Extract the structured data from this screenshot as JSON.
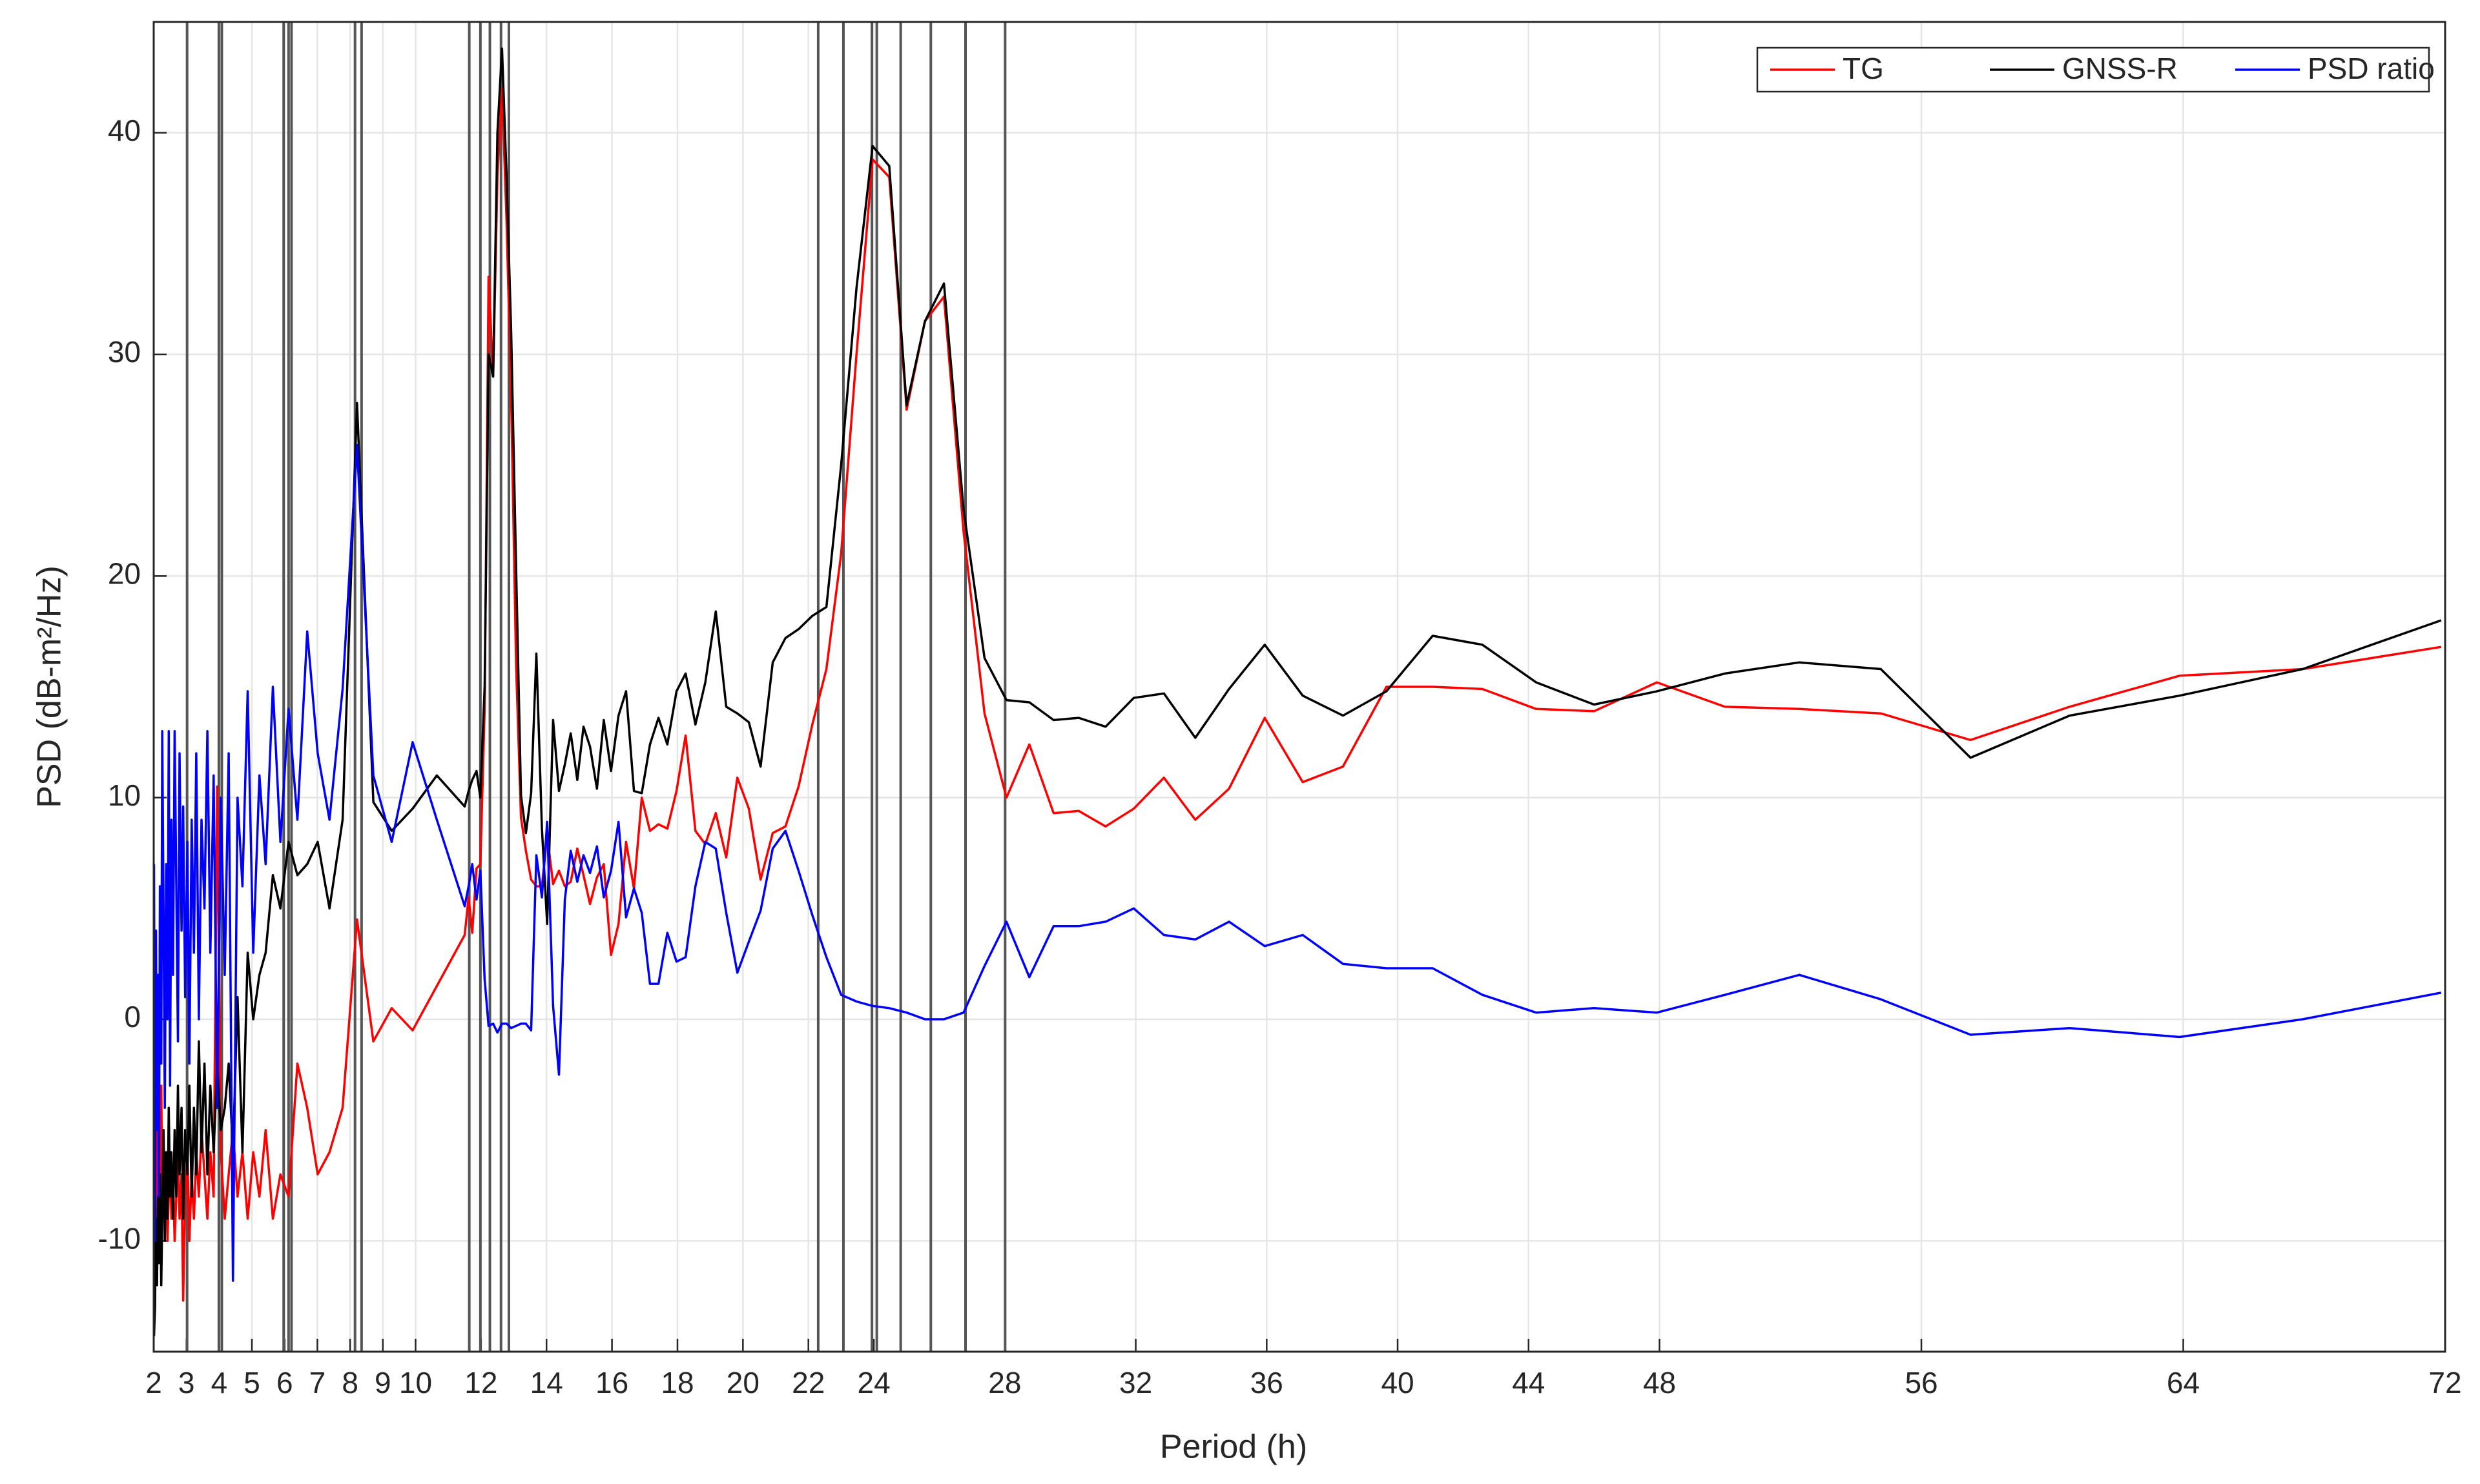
{
  "chart_data": {
    "type": "line",
    "xlabel": "Period (h)",
    "ylabel": "PSD (dB-m²/Hz)",
    "xlim": [
      2,
      72
    ],
    "ylim": [
      -15,
      45
    ],
    "xticks": [
      2,
      3,
      4,
      5,
      6,
      7,
      8,
      9,
      10,
      12,
      14,
      16,
      18,
      20,
      22,
      24,
      28,
      32,
      36,
      40,
      44,
      48,
      56,
      64,
      72
    ],
    "yticks": [
      -10,
      0,
      10,
      20,
      30,
      40
    ],
    "grid": true,
    "legend": "upper right",
    "vlines_color": "#555555",
    "vlines": [
      3.02,
      3.99,
      4.08,
      5.97,
      6.12,
      6.21,
      8.15,
      8.35,
      11.64,
      11.98,
      12.27,
      12.61,
      12.85,
      22.3,
      23.07,
      23.94,
      24.09,
      24.82,
      25.74,
      26.8,
      28.01
    ],
    "x": [
      2.01,
      2.04,
      2.07,
      2.1,
      2.13,
      2.16,
      2.19,
      2.23,
      2.26,
      2.3,
      2.34,
      2.38,
      2.42,
      2.46,
      2.5,
      2.54,
      2.59,
      2.64,
      2.69,
      2.74,
      2.79,
      2.85,
      2.9,
      2.96,
      3.03,
      3.09,
      3.16,
      3.23,
      3.3,
      3.38,
      3.46,
      3.55,
      3.64,
      3.73,
      3.83,
      3.94,
      4.05,
      4.17,
      4.29,
      4.42,
      4.56,
      4.71,
      4.87,
      5.04,
      5.23,
      5.42,
      5.64,
      5.87,
      6.12,
      6.39,
      6.69,
      7.01,
      7.37,
      7.77,
      8.21,
      8.71,
      9.27,
      9.91,
      10.65,
      11.5,
      11.62,
      11.73,
      11.86,
      11.98,
      12.11,
      12.23,
      12.37,
      12.5,
      12.64,
      12.78,
      12.92,
      13.07,
      13.22,
      13.37,
      13.53,
      13.69,
      13.86,
      14.02,
      14.2,
      14.38,
      14.56,
      14.74,
      14.94,
      15.13,
      15.33,
      15.54,
      15.75,
      15.97,
      16.2,
      16.43,
      16.67,
      16.91,
      17.16,
      17.42,
      17.69,
      17.97,
      18.25,
      18.55,
      18.85,
      19.17,
      19.49,
      19.83,
      20.18,
      20.54,
      20.91,
      21.3,
      21.7,
      22.12,
      22.55,
      23.0,
      23.47,
      23.96,
      24.47,
      25.0,
      25.56,
      26.14,
      26.74,
      27.38,
      28.05,
      28.75,
      29.49,
      30.26,
      31.08,
      31.94,
      32.86,
      33.82,
      34.85,
      35.94,
      37.1,
      38.33,
      39.66,
      41.07,
      42.59,
      44.23,
      46.0,
      47.92,
      50.0,
      52.27,
      54.76,
      57.5,
      60.53,
      63.89,
      67.65,
      71.88
    ],
    "series": [
      {
        "name": "TG",
        "color": "#ff0000",
        "values": [
          -12,
          3.5,
          -4,
          -9,
          -6,
          -2,
          -7,
          -3,
          -8,
          -5,
          -9,
          -7,
          -10,
          -8,
          -6,
          -9,
          -7,
          -10,
          -8,
          -6,
          -9,
          -7,
          -12.7,
          -8,
          -6,
          -10,
          -7,
          -9,
          -6,
          -8,
          -5,
          -7,
          -9,
          -6,
          -8,
          10.5,
          -6,
          -9,
          -7,
          -5,
          -8,
          -6,
          -9,
          -6,
          -8,
          -5,
          -9,
          -7,
          -8,
          -2,
          -4,
          -7,
          -6,
          -4,
          4.5,
          -1,
          0.5,
          -0.5,
          1.5,
          3.8,
          5.5,
          3.9,
          6.8,
          7.0,
          14,
          33.5,
          29,
          38,
          42,
          36,
          28,
          16,
          9.1,
          7.6,
          6.3,
          6.0,
          6.0,
          8.3,
          6.1,
          6.7,
          6.0,
          6.2,
          7.7,
          6.5,
          5.2,
          6.4,
          7.0,
          2.9,
          4.3,
          8.0,
          5.9,
          10.0,
          8.5,
          8.8,
          8.6,
          10.3,
          12.8,
          8.5,
          7.9,
          9.3,
          7.3,
          10.9,
          9.5,
          6.3,
          8.4,
          8.7,
          10.5,
          13.3,
          15.8,
          21,
          30,
          38.8,
          38.0,
          27.5,
          31.5,
          32.6,
          22.0,
          13.8,
          10.0,
          12.4,
          9.3,
          9.4,
          8.7,
          9.5,
          10.9,
          9.0,
          10.4,
          13.6,
          10.7,
          11.4,
          15.0,
          15.0,
          14.9,
          14.0,
          13.9,
          15.2,
          14.1,
          14.0,
          13.8,
          12.6,
          14.1,
          15.5,
          15.8,
          16.8
        ]
      },
      {
        "name": "GNSS-R",
        "color": "#000000",
        "values": [
          -14.3,
          -13,
          -9,
          -12,
          -8,
          -11,
          -7,
          -12,
          -9,
          -5,
          -10,
          -6,
          -9,
          -4,
          -8,
          -6,
          -9,
          -5,
          -8,
          -3,
          -7,
          -4,
          -9,
          -5,
          -7,
          -3,
          -8,
          -4,
          -7,
          -1,
          -6,
          -2,
          -7,
          -3,
          -6,
          -2,
          -5,
          -4,
          -2,
          -6,
          1,
          -6,
          3,
          0,
          2,
          3,
          6.5,
          5,
          8,
          6.5,
          7,
          8,
          5,
          9,
          27.8,
          9.8,
          8.5,
          9.5,
          11,
          9.6,
          10.3,
          10.8,
          11.2,
          10,
          15,
          30,
          29,
          40,
          43.8,
          38,
          31,
          20.4,
          10.1,
          8.4,
          10.2,
          16.5,
          8.6,
          4.3,
          13.5,
          10.3,
          11.5,
          12.9,
          10.8,
          13.2,
          12.3,
          10.4,
          13.5,
          11.2,
          13.7,
          14.8,
          10.3,
          10.2,
          12.4,
          13.6,
          12.4,
          14.8,
          15.6,
          13.3,
          15.2,
          18.4,
          14.1,
          13.8,
          13.4,
          11.4,
          16.1,
          17.2,
          17.6,
          18.2,
          18.6,
          25,
          33,
          39.4,
          38.5,
          27.7,
          31.5,
          33.2,
          23.0,
          16.3,
          14.4,
          14.3,
          13.5,
          13.6,
          13.2,
          14.5,
          14.7,
          12.7,
          14.9,
          16.9,
          14.6,
          13.7,
          14.8,
          17.3,
          16.9,
          15.2,
          14.2,
          14.8,
          15.6,
          16.1,
          15.8,
          11.8,
          13.7,
          14.6,
          15.8,
          18.0
        ]
      },
      {
        "name": "PSD ratio",
        "color": "#0000ff",
        "values": [
          7,
          -10,
          4,
          -5,
          2,
          -8,
          6,
          -2,
          13,
          5,
          -4,
          7,
          0,
          13,
          -3,
          9,
          2,
          13,
          6,
          -1,
          12,
          4,
          9.6,
          1,
          8,
          -2,
          9,
          3,
          12,
          0,
          9,
          5,
          13,
          3,
          11,
          -4,
          10,
          2,
          12,
          -11.8,
          10,
          6,
          14.8,
          3,
          11,
          7,
          15,
          8,
          14,
          9,
          17.5,
          12,
          9,
          14.9,
          25.9,
          11,
          8,
          12.5,
          9,
          5.1,
          6.0,
          7.0,
          5.4,
          6.7,
          1.8,
          -0.3,
          -0.2,
          -0.6,
          -0.2,
          -0.2,
          -0.4,
          -0.3,
          -0.2,
          -0.2,
          -0.5,
          7.4,
          5.5,
          8.9,
          0.6,
          -2.5,
          5.4,
          7.6,
          6.2,
          7.4,
          6.6,
          7.8,
          5.5,
          6.7,
          8.9,
          4.6,
          5.9,
          4.8,
          1.6,
          1.6,
          3.9,
          2.6,
          2.8,
          6.0,
          8.0,
          7.7,
          4.8,
          2.1,
          3.5,
          4.9,
          7.7,
          8.5,
          6.7,
          4.7,
          2.8,
          1.1,
          0.8,
          0.6,
          0.5,
          0.3,
          0.0,
          0.0,
          0.3,
          2.4,
          4.4,
          1.9,
          4.2,
          4.2,
          4.4,
          5.0,
          3.8,
          3.6,
          4.4,
          3.3,
          3.8,
          2.5,
          2.3,
          2.3,
          1.1,
          0.3,
          0.5,
          0.3,
          1.1,
          2.0,
          0.9,
          -0.7,
          -0.4,
          -0.8,
          0.0,
          1.2
        ]
      }
    ]
  }
}
